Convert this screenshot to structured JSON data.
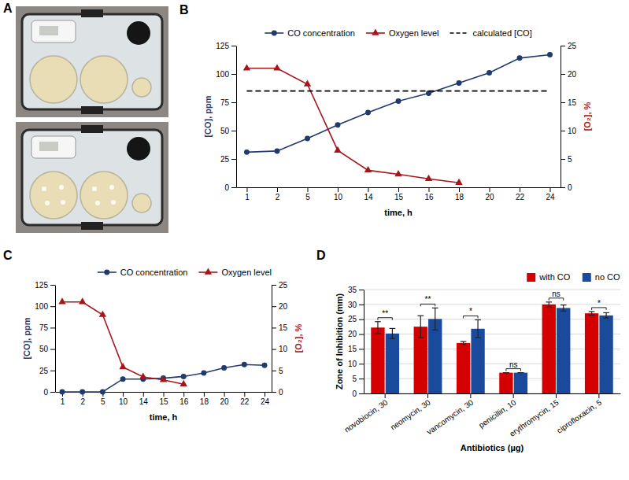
{
  "chart_data": [
    {
      "type": "image",
      "panel": "A"
    },
    {
      "type": "line",
      "panel": "B",
      "x_label": "time, h",
      "y_label": "[CO], ppm",
      "y2_label": "[O₂], %",
      "categories": [
        "1",
        "2",
        "5",
        "10",
        "14",
        "15",
        "16",
        "18",
        "20",
        "22",
        "24"
      ],
      "series": [
        {
          "name": "CO concentration",
          "color": "#1f3b6e",
          "marker": "circle",
          "line_style": "solid",
          "values": [
            31,
            32,
            43,
            55,
            66,
            76,
            83,
            92,
            101,
            114,
            117
          ]
        },
        {
          "name": "Oxygen level",
          "color": "#a4161a",
          "marker": "triangle",
          "line_style": "solid",
          "axis": "y2",
          "values": [
            21,
            21,
            18.2,
            6.5,
            3,
            2.3,
            1.5,
            0.8,
            null,
            null,
            null
          ]
        },
        {
          "name": "calculated [CO]",
          "color": "#000000",
          "marker": "none",
          "line_style": "dashed",
          "values": [
            85,
            85,
            85,
            85,
            85,
            85,
            85,
            85,
            85,
            85,
            85
          ]
        }
      ],
      "ylim": [
        0,
        125
      ],
      "yticks": [
        0,
        25,
        50,
        75,
        100,
        125
      ],
      "y2lim": [
        0,
        25
      ],
      "y2ticks": [
        0,
        5,
        10,
        15,
        20,
        25
      ],
      "grid": false,
      "legend": "top"
    },
    {
      "type": "line",
      "panel": "C",
      "x_label": "time, h",
      "y_label": "[CO], ppm",
      "y2_label": "[O₂], %",
      "categories": [
        "1",
        "2",
        "5",
        "10",
        "14",
        "15",
        "16",
        "18",
        "20",
        "22",
        "24"
      ],
      "series": [
        {
          "name": "CO concentration",
          "color": "#1f3b6e",
          "marker": "circle",
          "line_style": "solid",
          "values": [
            0,
            0,
            0,
            15,
            15,
            16,
            18,
            22,
            28,
            32,
            31
          ]
        },
        {
          "name": "Oxygen level",
          "color": "#a4161a",
          "marker": "triangle",
          "line_style": "solid",
          "axis": "y2",
          "values": [
            21,
            21,
            18,
            5.8,
            3.5,
            2.8,
            1.8,
            null,
            null,
            null,
            null
          ]
        }
      ],
      "ylim": [
        0,
        125
      ],
      "yticks": [
        0,
        25,
        50,
        75,
        100,
        125
      ],
      "y2lim": [
        0,
        25
      ],
      "y2ticks": [
        0,
        5,
        10,
        15,
        20,
        25
      ],
      "grid": false,
      "legend": "top-right"
    },
    {
      "type": "bar",
      "panel": "D",
      "x_label": "Antibiotics (µg)",
      "y_label": "Zone of Inhibition (mm)",
      "categories": [
        "novobiocin, 30",
        "neomycin, 30",
        "vancomycin, 30",
        "penicillin, 10",
        "erythromycin, 15",
        "ciprofloxacin, 5"
      ],
      "series": [
        {
          "name": "with CO",
          "color": "#d40000",
          "values": [
            22.2,
            22.5,
            17.0,
            7.0,
            30.0,
            27.0
          ],
          "errors": [
            2.0,
            3.7,
            0.5,
            0,
            0.8,
            0.6
          ]
        },
        {
          "name": "no CO",
          "color": "#1a4a9c",
          "values": [
            20.2,
            25.1,
            21.8,
            7.0,
            28.8,
            26.3
          ],
          "errors": [
            1.7,
            3.7,
            3.0,
            0,
            1.0,
            0.9
          ]
        }
      ],
      "significance": [
        "**",
        "**",
        "*",
        "ns",
        "ns",
        "*"
      ],
      "ylim": [
        0,
        35
      ],
      "yticks": [
        0,
        5,
        10,
        15,
        20,
        25,
        30,
        35
      ],
      "grid": true,
      "legend": "top-right"
    }
  ]
}
